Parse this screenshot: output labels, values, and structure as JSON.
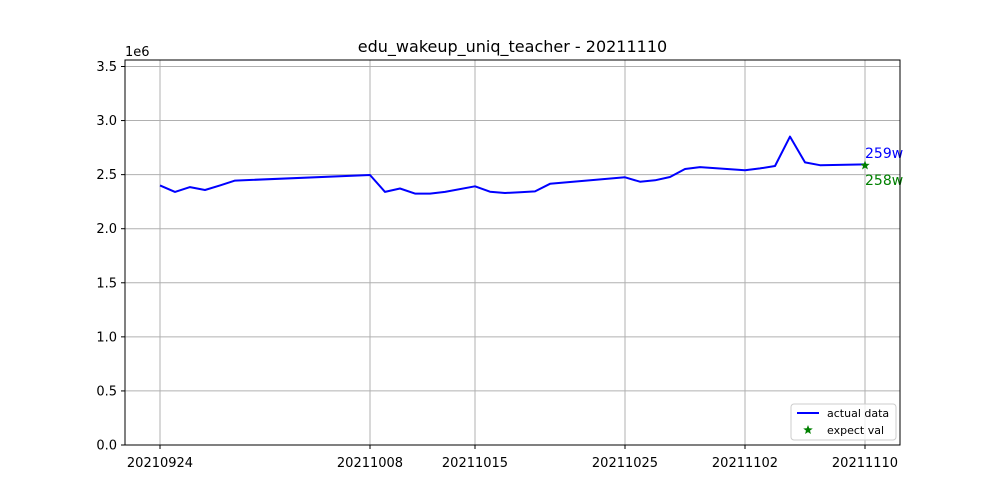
{
  "chart_data": {
    "type": "line",
    "title": "edu_wakeup_uniq_teacher - 20211110",
    "xlabel": "",
    "ylabel": "",
    "y_offset_label": "1e6",
    "x_ticks": [
      "20210924",
      "20211008",
      "20211015",
      "20211025",
      "20211102",
      "20211110"
    ],
    "y_ticks": [
      "0.0",
      "0.5",
      "1.0",
      "1.5",
      "2.0",
      "2.5",
      "3.0",
      "3.5"
    ],
    "ylim": [
      0,
      3560000
    ],
    "grid": true,
    "legend_position": "lower-right",
    "x": [
      "20210924",
      "20210925",
      "20210926",
      "20210927",
      "20210928",
      "20210929",
      "20211008",
      "20211009",
      "20211010",
      "20211011",
      "20211012",
      "20211013",
      "20211015",
      "20211016",
      "20211017",
      "20211018",
      "20211019",
      "20211020",
      "20211025",
      "20211026",
      "20211027",
      "20211028",
      "20211029",
      "20211030",
      "20211102",
      "20211103",
      "20211104",
      "20211105",
      "20211106",
      "20211107",
      "20211110"
    ],
    "series": [
      {
        "name": "actual data",
        "color": "#0000ff",
        "values": [
          2400000,
          2340000,
          2385000,
          2358000,
          2400000,
          2445000,
          2497000,
          2340000,
          2372000,
          2325000,
          2325000,
          2340000,
          2392000,
          2342000,
          2330000,
          2338000,
          2345000,
          2415000,
          2475000,
          2435000,
          2448000,
          2478000,
          2552000,
          2570000,
          2540000,
          2558000,
          2580000,
          2852000,
          2613000,
          2587000,
          2595000
        ]
      },
      {
        "name": "expect val",
        "color": "#008000",
        "marker": "star",
        "x": [
          "20211110"
        ],
        "values": [
          2585000
        ]
      }
    ],
    "annotations": [
      {
        "text": "259w",
        "color": "#0000ff",
        "x": "20211110",
        "y": 2700000
      },
      {
        "text": "258w",
        "color": "#008000",
        "x": "20211110",
        "y": 2450000
      }
    ]
  }
}
